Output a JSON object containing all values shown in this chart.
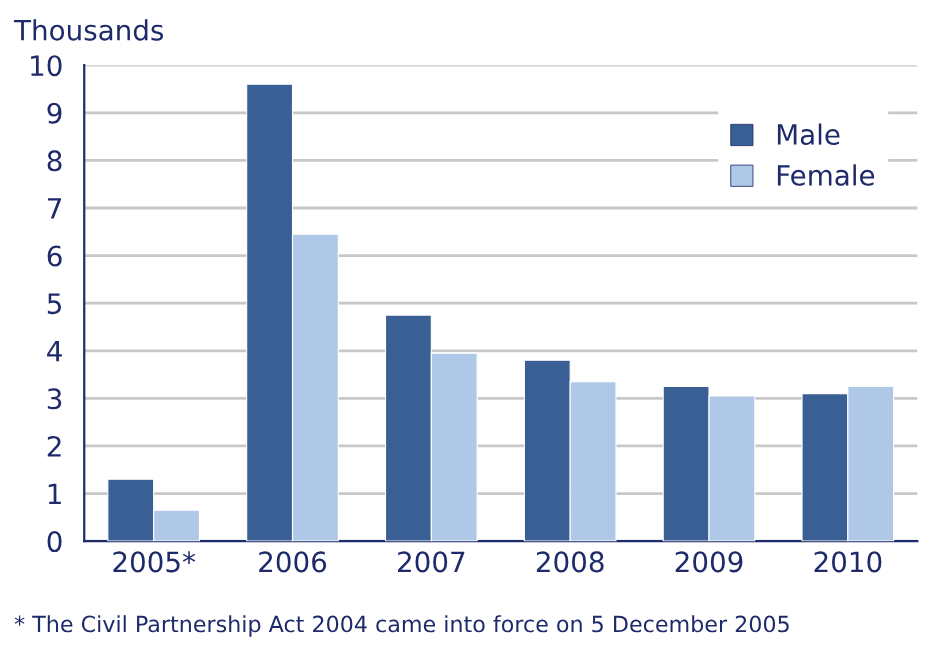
{
  "chart_data": {
    "type": "bar",
    "ylabel": "Thousands",
    "categories": [
      "2005*",
      "2006",
      "2007",
      "2008",
      "2009",
      "2010"
    ],
    "series": [
      {
        "name": "Male",
        "color": "#3a5f94",
        "values": [
          1.3,
          9.6,
          4.75,
          3.8,
          3.25,
          3.1
        ]
      },
      {
        "name": "Female",
        "color": "#b0c8e8",
        "values": [
          0.65,
          6.45,
          3.95,
          3.35,
          3.05,
          3.25
        ]
      }
    ],
    "ylim": [
      0,
      10
    ],
    "yticks": [
      0,
      1,
      2,
      3,
      4,
      5,
      6,
      7,
      8,
      9,
      10
    ],
    "grid": "y",
    "legend": "top right",
    "annotations": [
      "* The Civil Partnership Act 2004 came into force on 5 December 2005"
    ]
  }
}
